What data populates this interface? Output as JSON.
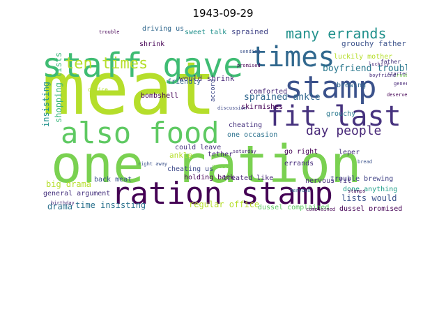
{
  "title": "1943-09-29",
  "words": [
    {
      "text": "meat",
      "color": "#b5de2b"
    },
    {
      "text": "one ration",
      "color": "#7ad151"
    },
    {
      "text": "ration stamp",
      "color": "#440154"
    },
    {
      "text": "staff gave",
      "color": "#3fbc73"
    },
    {
      "text": "times",
      "color": "#31688e"
    },
    {
      "text": "stamp",
      "color": "#3b528b"
    },
    {
      "text": "also food",
      "color": "#5ec962"
    },
    {
      "text": "fit last",
      "color": "#46327e"
    },
    {
      "text": "many errands",
      "color": "#21918c"
    },
    {
      "text": "ten times",
      "color": "#b5de2b"
    },
    {
      "text": "day people",
      "color": "#482878"
    },
    {
      "text": "sprained ankle",
      "color": "#31688e"
    },
    {
      "text": "boyfriend troubles",
      "color": "#2a788e"
    },
    {
      "text": "sprained",
      "color": "#414487"
    },
    {
      "text": "grouchy father",
      "color": "#3b528b"
    },
    {
      "text": "would shrink",
      "color": "#482878"
    },
    {
      "text": "time insisting",
      "color": "#2c728e"
    },
    {
      "text": "regular office",
      "color": "#b5de2b"
    },
    {
      "text": "big drama",
      "color": "#b5de2b"
    },
    {
      "text": "general argument",
      "color": "#46327e"
    },
    {
      "text": "lists would",
      "color": "#3b528b"
    },
    {
      "text": "done anything",
      "color": "#1f9e89"
    },
    {
      "text": "trouble brewing",
      "color": "#414487"
    },
    {
      "text": "nervous fit",
      "color": "#472d7b"
    },
    {
      "text": "dussel promised",
      "color": "#440154"
    },
    {
      "text": "dussel complained",
      "color": "#5ec962"
    },
    {
      "text": "back meat",
      "color": "#3b528b"
    },
    {
      "text": "holding back",
      "color": "#440154"
    },
    {
      "text": "treated like",
      "color": "#482878"
    },
    {
      "text": "could leave",
      "color": "#46327e"
    },
    {
      "text": "cheating us",
      "color": "#3e4989"
    },
    {
      "text": "drama",
      "color": "#2c728e"
    },
    {
      "text": "insisting",
      "color": "#21918c"
    },
    {
      "text": "shopping lists",
      "color": "#35b779"
    },
    {
      "text": "bombshell",
      "color": "#440154"
    },
    {
      "text": "errands",
      "color": "#472d7b"
    },
    {
      "text": "go right",
      "color": "#440154"
    },
    {
      "text": "one occasion",
      "color": "#2c728e"
    },
    {
      "text": "comforted",
      "color": "#482878"
    },
    {
      "text": "cheating",
      "color": "#46327e"
    },
    {
      "text": "ankle",
      "color": "#b5de2b"
    },
    {
      "text": "tether",
      "color": "#482878"
    },
    {
      "text": "leper",
      "color": "#46327e"
    },
    {
      "text": "grouchy",
      "color": "#2a788e"
    },
    {
      "text": "brewing",
      "color": "#31688e"
    },
    {
      "text": "luckily mother",
      "color": "#b5de2b"
    },
    {
      "text": "skirmishes",
      "color": "#440154"
    },
    {
      "text": "friendly",
      "color": "#31688e"
    },
    {
      "text": "accord",
      "color": "#3e4989"
    },
    {
      "text": "sweet talk",
      "color": "#21918c"
    },
    {
      "text": "driving us",
      "color": "#31688e"
    },
    {
      "text": "shrink",
      "color": "#440154"
    },
    {
      "text": "office",
      "color": "#b5de2b"
    },
    {
      "text": "general",
      "color": "#482878"
    },
    {
      "text": "troubles",
      "color": "#7ad151"
    },
    {
      "text": "bread",
      "color": "#3b528b"
    },
    {
      "text": "saturday",
      "color": "#482878"
    },
    {
      "text": "great",
      "color": "#7ad151"
    },
    {
      "text": "father",
      "color": "#46327e"
    },
    {
      "text": "birthday",
      "color": "#482878"
    },
    {
      "text": "boyfriend",
      "color": "#472d7b"
    },
    {
      "text": "promised",
      "color": "#440154"
    },
    {
      "text": "complained",
      "color": "#440154"
    },
    {
      "text": "luckily",
      "color": "#482878"
    },
    {
      "text": "deserve",
      "color": "#440154"
    },
    {
      "text": "nervous",
      "color": "#31688e"
    },
    {
      "text": "right away",
      "color": "#3b528b"
    },
    {
      "text": "started",
      "color": "#46327e"
    },
    {
      "text": "trouble",
      "color": "#440154"
    },
    {
      "text": "sending",
      "color": "#3b528b"
    },
    {
      "text": "stamps",
      "color": "#440154"
    },
    {
      "text": "discussion",
      "color": "#3e4989"
    }
  ]
}
